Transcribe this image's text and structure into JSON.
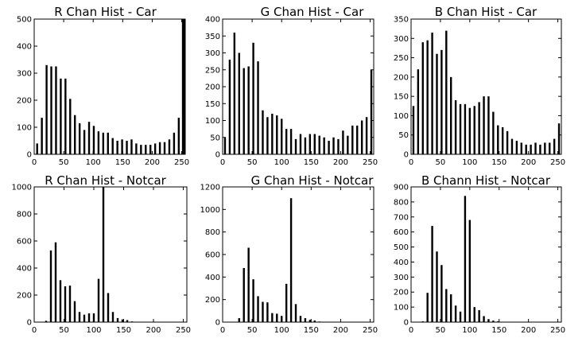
{
  "chart_data": [
    {
      "type": "bar",
      "title": "R Chan Hist - Car",
      "xlabel": "",
      "ylabel": "",
      "xlim": [
        0,
        256
      ],
      "ylim": [
        0,
        500
      ],
      "xticks": [
        0,
        50,
        100,
        150,
        200,
        250
      ],
      "yticks": [
        0,
        100,
        200,
        300,
        400,
        500
      ],
      "grid": false,
      "series": [
        {
          "color": "#000000",
          "x": [
            0,
            5,
            13,
            21,
            29,
            37,
            45,
            53,
            61,
            69,
            77,
            85,
            93,
            101,
            109,
            117,
            125,
            133,
            141,
            149,
            157,
            165,
            173,
            181,
            189,
            197,
            205,
            213,
            221,
            229,
            237,
            245,
            252,
            254
          ],
          "values": [
            0,
            40,
            135,
            330,
            325,
            325,
            280,
            280,
            205,
            145,
            115,
            90,
            120,
            105,
            85,
            80,
            80,
            60,
            50,
            55,
            50,
            55,
            40,
            35,
            35,
            35,
            40,
            45,
            45,
            55,
            80,
            135,
            500,
            500
          ]
        }
      ]
    },
    {
      "type": "bar",
      "title": "G Chan Hist - Car",
      "xlabel": "",
      "ylabel": "",
      "xlim": [
        0,
        256
      ],
      "ylim": [
        0,
        400
      ],
      "xticks": [
        0,
        50,
        100,
        150,
        200,
        250
      ],
      "yticks": [
        0,
        50,
        100,
        150,
        200,
        250,
        300,
        350,
        400
      ],
      "grid": false,
      "series": [
        {
          "color": "#000000",
          "x": [
            4,
            12,
            20,
            28,
            36,
            44,
            52,
            60,
            68,
            76,
            84,
            92,
            100,
            108,
            116,
            124,
            132,
            140,
            148,
            156,
            164,
            172,
            180,
            188,
            196,
            204,
            212,
            220,
            228,
            236,
            244,
            252
          ],
          "values": [
            50,
            280,
            360,
            300,
            255,
            260,
            330,
            275,
            130,
            110,
            120,
            115,
            105,
            75,
            75,
            45,
            60,
            50,
            60,
            60,
            55,
            50,
            40,
            50,
            45,
            70,
            55,
            85,
            85,
            100,
            110,
            250
          ]
        }
      ]
    },
    {
      "type": "bar",
      "title": "B Chan Hist - Car",
      "xlabel": "",
      "ylabel": "",
      "xlim": [
        0,
        256
      ],
      "ylim": [
        0,
        350
      ],
      "xticks": [
        0,
        50,
        100,
        150,
        200,
        250
      ],
      "yticks": [
        0,
        50,
        100,
        150,
        200,
        250,
        300,
        350
      ],
      "grid": false,
      "series": [
        {
          "color": "#000000",
          "x": [
            4,
            12,
            20,
            28,
            36,
            44,
            52,
            60,
            68,
            76,
            84,
            92,
            100,
            108,
            116,
            124,
            132,
            140,
            148,
            156,
            164,
            172,
            180,
            188,
            196,
            204,
            212,
            220,
            228,
            236,
            244,
            252
          ],
          "values": [
            125,
            220,
            290,
            295,
            315,
            260,
            270,
            320,
            200,
            140,
            130,
            130,
            120,
            125,
            135,
            150,
            150,
            110,
            75,
            70,
            60,
            40,
            35,
            30,
            25,
            25,
            30,
            25,
            30,
            30,
            40,
            80
          ]
        }
      ]
    },
    {
      "type": "bar",
      "title": "R Chan Hist - Notcar",
      "xlabel": "",
      "ylabel": "",
      "xlim": [
        0,
        256
      ],
      "ylim": [
        0,
        1000
      ],
      "xticks": [
        0,
        50,
        100,
        150,
        200,
        250
      ],
      "yticks": [
        0,
        200,
        400,
        600,
        800,
        1000
      ],
      "grid": false,
      "series": [
        {
          "color": "#000000",
          "x": [
            20,
            28,
            36,
            44,
            52,
            60,
            68,
            76,
            84,
            92,
            100,
            108,
            116,
            124,
            132,
            140,
            148,
            156,
            164
          ],
          "values": [
            10,
            530,
            590,
            310,
            265,
            270,
            155,
            75,
            55,
            65,
            65,
            320,
            1000,
            215,
            75,
            30,
            20,
            15,
            5
          ]
        }
      ]
    },
    {
      "type": "bar",
      "title": "G Chan Hist - Notcar",
      "xlabel": "",
      "ylabel": "",
      "xlim": [
        0,
        256
      ],
      "ylim": [
        0,
        1200
      ],
      "xticks": [
        0,
        50,
        100,
        150,
        200,
        250
      ],
      "yticks": [
        0,
        200,
        400,
        600,
        800,
        1000,
        1200
      ],
      "grid": false,
      "series": [
        {
          "color": "#000000",
          "x": [
            28,
            36,
            44,
            52,
            60,
            68,
            76,
            84,
            92,
            100,
            108,
            116,
            124,
            132,
            140,
            148,
            156,
            164
          ],
          "values": [
            35,
            480,
            660,
            380,
            230,
            180,
            175,
            80,
            75,
            55,
            340,
            1100,
            160,
            55,
            35,
            20,
            15,
            5
          ]
        }
      ]
    },
    {
      "type": "bar",
      "title": "B Chann Hist - Notcar",
      "xlabel": "",
      "ylabel": "",
      "xlim": [
        0,
        256
      ],
      "ylim": [
        0,
        900
      ],
      "xticks": [
        0,
        50,
        100,
        150,
        200,
        250
      ],
      "yticks": [
        0,
        100,
        200,
        300,
        400,
        500,
        600,
        700,
        800,
        900
      ],
      "grid": false,
      "series": [
        {
          "color": "#000000",
          "x": [
            20,
            28,
            36,
            44,
            52,
            60,
            68,
            76,
            84,
            92,
            100,
            108,
            116,
            124,
            132,
            140,
            148
          ],
          "values": [
            5,
            195,
            640,
            470,
            380,
            220,
            185,
            110,
            70,
            840,
            680,
            100,
            80,
            40,
            20,
            10,
            5
          ]
        }
      ]
    }
  ]
}
